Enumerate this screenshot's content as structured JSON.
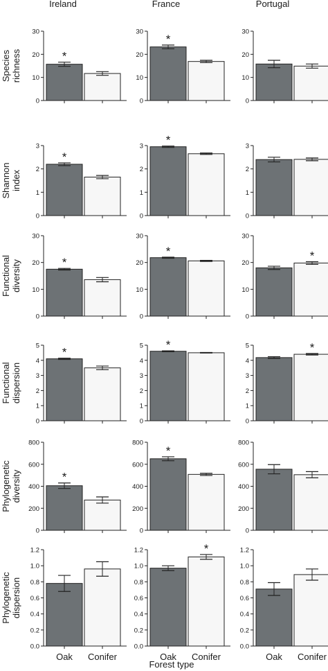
{
  "figure": {
    "columns": [
      "Ireland",
      "France",
      "Portugal"
    ],
    "xlabel": "Forest type",
    "categories": [
      "Oak",
      "Conifer"
    ],
    "oak_color": "#6d7275",
    "conifer_color": "#f7f7f7"
  },
  "chart_data": [
    {
      "type": "bar",
      "panel": "ireland-species-richness",
      "country": "Ireland",
      "ylabel": [
        "Species",
        "richness"
      ],
      "ylim": [
        0,
        30
      ],
      "yticks": [
        "0",
        "10",
        "20",
        "30"
      ],
      "categories": [
        "Oak",
        "Conifer"
      ],
      "values": [
        15.7,
        11.7
      ],
      "errors": [
        0.9,
        0.8
      ],
      "significant": [
        true,
        false
      ]
    },
    {
      "type": "bar",
      "panel": "france-species-richness",
      "country": "France",
      "ylabel": [
        "Species",
        "richness"
      ],
      "ylim": [
        0,
        30
      ],
      "yticks": [
        "0",
        "10",
        "20",
        "30"
      ],
      "categories": [
        "Oak",
        "Conifer"
      ],
      "values": [
        23.2,
        16.9
      ],
      "errors": [
        0.8,
        0.5
      ],
      "significant": [
        true,
        false
      ]
    },
    {
      "type": "bar",
      "panel": "portugal-species-richness",
      "country": "Portugal",
      "ylabel": [
        "Species",
        "richness"
      ],
      "ylim": [
        0,
        30
      ],
      "yticks": [
        "0",
        "10",
        "20",
        "30"
      ],
      "categories": [
        "Oak",
        "Conifer"
      ],
      "values": [
        15.8,
        14.9
      ],
      "errors": [
        1.6,
        0.9
      ],
      "significant": [
        false,
        false
      ]
    },
    {
      "type": "bar",
      "panel": "ireland-shannon-index",
      "country": "Ireland",
      "ylabel": [
        "Shannon",
        "index"
      ],
      "ylim": [
        0,
        3
      ],
      "yticks": [
        "0",
        "1",
        "2",
        "3"
      ],
      "categories": [
        "Oak",
        "Conifer"
      ],
      "values": [
        2.2,
        1.65
      ],
      "errors": [
        0.06,
        0.07
      ],
      "significant": [
        true,
        false
      ]
    },
    {
      "type": "bar",
      "panel": "france-shannon-index",
      "country": "France",
      "ylabel": [
        "Shannon",
        "index"
      ],
      "ylim": [
        0,
        3
      ],
      "yticks": [
        "0",
        "1",
        "2",
        "3"
      ],
      "categories": [
        "Oak",
        "Conifer"
      ],
      "values": [
        2.95,
        2.65
      ],
      "errors": [
        0.03,
        0.03
      ],
      "significant": [
        true,
        false
      ]
    },
    {
      "type": "bar",
      "panel": "portugal-shannon-index",
      "country": "Portugal",
      "ylabel": [
        "Shannon",
        "index"
      ],
      "ylim": [
        0,
        3
      ],
      "yticks": [
        "0",
        "1",
        "2",
        "3"
      ],
      "categories": [
        "Oak",
        "Conifer"
      ],
      "values": [
        2.4,
        2.41
      ],
      "errors": [
        0.1,
        0.06
      ],
      "significant": [
        false,
        false
      ]
    },
    {
      "type": "bar",
      "panel": "ireland-functional-diversity",
      "country": "Ireland",
      "ylabel": [
        "Functional",
        "diversity"
      ],
      "ylim": [
        0,
        30
      ],
      "yticks": [
        "0",
        "10",
        "20",
        "30"
      ],
      "categories": [
        "Oak",
        "Conifer"
      ],
      "values": [
        17.5,
        13.6
      ],
      "errors": [
        0.3,
        0.8
      ],
      "significant": [
        true,
        false
      ]
    },
    {
      "type": "bar",
      "panel": "france-functional-diversity",
      "country": "France",
      "ylabel": [
        "Functional",
        "diversity"
      ],
      "ylim": [
        0,
        30
      ],
      "yticks": [
        "0",
        "10",
        "20",
        "30"
      ],
      "categories": [
        "Oak",
        "Conifer"
      ],
      "values": [
        21.8,
        20.6
      ],
      "errors": [
        0.2,
        0.2
      ],
      "significant": [
        true,
        false
      ]
    },
    {
      "type": "bar",
      "panel": "portugal-functional-diversity",
      "country": "Portugal",
      "ylabel": [
        "Functional",
        "diversity"
      ],
      "ylim": [
        0,
        30
      ],
      "yticks": [
        "0",
        "10",
        "20",
        "30"
      ],
      "categories": [
        "Oak",
        "Conifer"
      ],
      "values": [
        18.0,
        19.8
      ],
      "errors": [
        0.6,
        0.5
      ],
      "significant": [
        false,
        true
      ]
    },
    {
      "type": "bar",
      "panel": "ireland-functional-dispersion",
      "country": "Ireland",
      "ylabel": [
        "Functional",
        "dispersion"
      ],
      "ylim": [
        0,
        5
      ],
      "yticks": [
        "0",
        "1",
        "2",
        "3",
        "4",
        "5"
      ],
      "categories": [
        "Oak",
        "Conifer"
      ],
      "values": [
        4.1,
        3.5
      ],
      "errors": [
        0.04,
        0.12
      ],
      "significant": [
        true,
        false
      ]
    },
    {
      "type": "bar",
      "panel": "france-functional-dispersion",
      "country": "France",
      "ylabel": [
        "Functional",
        "dispersion"
      ],
      "ylim": [
        0,
        5
      ],
      "yticks": [
        "0",
        "1",
        "2",
        "3",
        "4",
        "5"
      ],
      "categories": [
        "Oak",
        "Conifer"
      ],
      "values": [
        4.6,
        4.5
      ],
      "errors": [
        0.03,
        0.02
      ],
      "significant": [
        true,
        false
      ]
    },
    {
      "type": "bar",
      "panel": "portugal-functional-dispersion",
      "country": "Portugal",
      "ylabel": [
        "Functional",
        "dispersion"
      ],
      "ylim": [
        0,
        5
      ],
      "yticks": [
        "0",
        "1",
        "2",
        "3",
        "4",
        "5"
      ],
      "categories": [
        "Oak",
        "Conifer"
      ],
      "values": [
        4.18,
        4.4
      ],
      "errors": [
        0.06,
        0.05
      ],
      "significant": [
        false,
        true
      ]
    },
    {
      "type": "bar",
      "panel": "ireland-phylogenetic-diversity",
      "country": "Ireland",
      "ylabel": [
        "Phylogenetic",
        "diversity"
      ],
      "ylim": [
        0,
        800
      ],
      "yticks": [
        "0",
        "200",
        "400",
        "600",
        "800"
      ],
      "categories": [
        "Oak",
        "Conifer"
      ],
      "values": [
        405,
        275
      ],
      "errors": [
        25,
        28
      ],
      "significant": [
        true,
        false
      ]
    },
    {
      "type": "bar",
      "panel": "france-phylogenetic-diversity",
      "country": "France",
      "ylabel": [
        "Phylogenetic",
        "diversity"
      ],
      "ylim": [
        0,
        800
      ],
      "yticks": [
        "0",
        "200",
        "400",
        "600",
        "800"
      ],
      "categories": [
        "Oak",
        "Conifer"
      ],
      "values": [
        650,
        508
      ],
      "errors": [
        18,
        10
      ],
      "significant": [
        true,
        false
      ]
    },
    {
      "type": "bar",
      "panel": "portugal-phylogenetic-diversity",
      "country": "Portugal",
      "ylabel": [
        "Phylogenetic",
        "diversity"
      ],
      "ylim": [
        0,
        800
      ],
      "yticks": [
        "0",
        "200",
        "400",
        "600",
        "800"
      ],
      "categories": [
        "Oak",
        "Conifer"
      ],
      "values": [
        555,
        505
      ],
      "errors": [
        42,
        28
      ],
      "significant": [
        false,
        false
      ]
    },
    {
      "type": "bar",
      "panel": "ireland-phylogenetic-dispersion",
      "country": "Ireland",
      "ylabel": [
        "Phylogenetic",
        "dispersion"
      ],
      "ylim": [
        0,
        1.2
      ],
      "yticks": [
        "0.0",
        "0.2",
        "0.4",
        "0.6",
        "0.8",
        "1.0",
        "1.2"
      ],
      "categories": [
        "Oak",
        "Conifer"
      ],
      "values": [
        0.78,
        0.96
      ],
      "errors": [
        0.1,
        0.09
      ],
      "significant": [
        false,
        false
      ]
    },
    {
      "type": "bar",
      "panel": "france-phylogenetic-dispersion",
      "country": "France",
      "ylabel": [
        "Phylogenetic",
        "dispersion"
      ],
      "ylim": [
        0,
        1.2
      ],
      "yticks": [
        "0.0",
        "0.2",
        "0.4",
        "0.6",
        "0.8",
        "1.0",
        "1.2"
      ],
      "categories": [
        "Oak",
        "Conifer"
      ],
      "values": [
        0.97,
        1.11
      ],
      "errors": [
        0.03,
        0.03
      ],
      "significant": [
        false,
        true
      ]
    },
    {
      "type": "bar",
      "panel": "portugal-phylogenetic-dispersion",
      "country": "Portugal",
      "ylabel": [
        "Phylogenetic",
        "dispersion"
      ],
      "ylim": [
        0,
        1.2
      ],
      "yticks": [
        "0.0",
        "0.2",
        "0.4",
        "0.6",
        "0.8",
        "1.0",
        "1.2"
      ],
      "categories": [
        "Oak",
        "Conifer"
      ],
      "values": [
        0.71,
        0.89
      ],
      "errors": [
        0.08,
        0.07
      ],
      "significant": [
        false,
        false
      ]
    }
  ]
}
